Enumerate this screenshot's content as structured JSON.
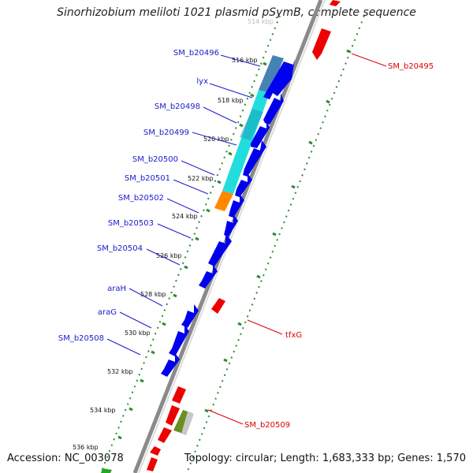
{
  "title": "Sinorhizobium meliloti 1021 plasmid pSymB, complete sequence",
  "footer": {
    "accession": "Accession: NC_003078",
    "summary": "Topology: circular; Length: 1,683,333 bp; Genes: 1,570"
  },
  "colors": {
    "forward_cds": "#0000ee",
    "reverse_cds": "#ee0000",
    "backbone": "#8a8a8a",
    "tick_dots": "#2e8b2e",
    "left_label": "#1a1acc",
    "right_label": "#dd0000",
    "highlight_cyan": "#22dddd",
    "highlight_steel": "#4682b4",
    "highlight_orange": "#ff8800",
    "highlight_olive": "#6b8e23"
  },
  "scale_labels": [
    "514 kbp",
    "516 kbp",
    "518 kbp",
    "520 kbp",
    "522 kbp",
    "524 kbp",
    "526 kbp",
    "528 kbp",
    "530 kbp",
    "532 kbp",
    "534 kbp",
    "536 kbp"
  ],
  "left_genes": [
    "SM_b20496",
    "lyx",
    "SM_b20498",
    "SM_b20499",
    "SM_b20500",
    "SM_b20501",
    "SM_b20502",
    "SM_b20503",
    "SM_b20504",
    "araH",
    "araG",
    "SM_b20508"
  ],
  "right_genes": [
    "SM_b20495",
    "tfxG",
    "SM_b20509"
  ]
}
